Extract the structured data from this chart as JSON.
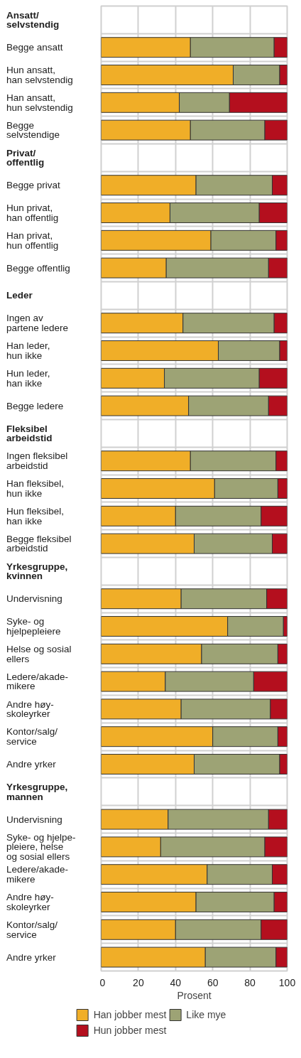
{
  "chart_data": {
    "type": "bar",
    "orientation": "horizontal",
    "stacked": true,
    "categories": [
      "Ansatt/\nselvstendig",
      "Begge ansatt",
      "Hun ansatt,\nhan selvstendig",
      "Han ansatt,\nhun selvstendig",
      "Begge\nselvstendige",
      "Privat/\noffentlig",
      "Begge privat",
      "Hun privat,\nhan offentlig",
      "Han privat,\nhun offentlig",
      "Begge offentlig",
      "Leder",
      "Ingen av\npartene ledere",
      "Han leder,\nhun ikke",
      "Hun leder,\nhan ikke",
      "Begge ledere",
      "Fleksibel\narbeidstid",
      "Ingen fleksibel\narbeidstid",
      "Han fleksibel,\nhun ikke",
      "Hun fleksibel,\nhan ikke",
      "Begge fleksibel\narbeidstid",
      "Yrkesgruppe,\nkvinnen",
      "Undervisning",
      "Syke- og\nhjelpepleiere",
      "Helse og sosial\nellers",
      "Ledere/akade-\nmikere",
      "Andre høy-\nskoleyrker",
      "Kontor/salg/\nservice",
      "Andre yrker",
      "Yrkesgruppe,\nmannen",
      "Undervisning",
      "Syke- og hjelpe-\npleiere, helse\nog sosial ellers",
      "Ledere/akade-\nmikere",
      "Andre høy-\nskoleyrker",
      "Kontor/salg/\nservice",
      "Andre yrker"
    ],
    "series": [
      {
        "name": "Han jobber mest",
        "color": "#f0ae28",
        "values": [
          null,
          48,
          71,
          42,
          48,
          null,
          51,
          37,
          59,
          35,
          null,
          44,
          63,
          34,
          47,
          null,
          48,
          61,
          40,
          50,
          null,
          43,
          68,
          54,
          34.5,
          43,
          60,
          50,
          null,
          36,
          32,
          57,
          51,
          40,
          56
        ]
      },
      {
        "name": "Like mye",
        "color": "#9da375",
        "values": [
          null,
          45,
          25,
          27,
          40,
          null,
          41,
          48,
          35,
          55,
          null,
          49,
          33,
          51,
          43,
          null,
          46,
          34,
          46,
          42,
          null,
          46,
          30,
          41,
          47.5,
          48,
          35,
          46,
          null,
          54,
          56,
          35,
          42,
          46,
          38
        ]
      },
      {
        "name": "Hun jobber mest",
        "color": "#b40f1e",
        "values": [
          null,
          7,
          4,
          31,
          12,
          null,
          8,
          15,
          6,
          10,
          null,
          7,
          4,
          15,
          10,
          null,
          6,
          5,
          14,
          8,
          null,
          11,
          2,
          5,
          18,
          9,
          5,
          4,
          null,
          10,
          12,
          8,
          7,
          14,
          6
        ]
      }
    ],
    "xlim": [
      0,
      100
    ],
    "xticks": [
      0,
      20,
      40,
      60,
      80,
      100
    ],
    "xlabel": "Prosent",
    "grid": true,
    "legend": "bottom"
  }
}
